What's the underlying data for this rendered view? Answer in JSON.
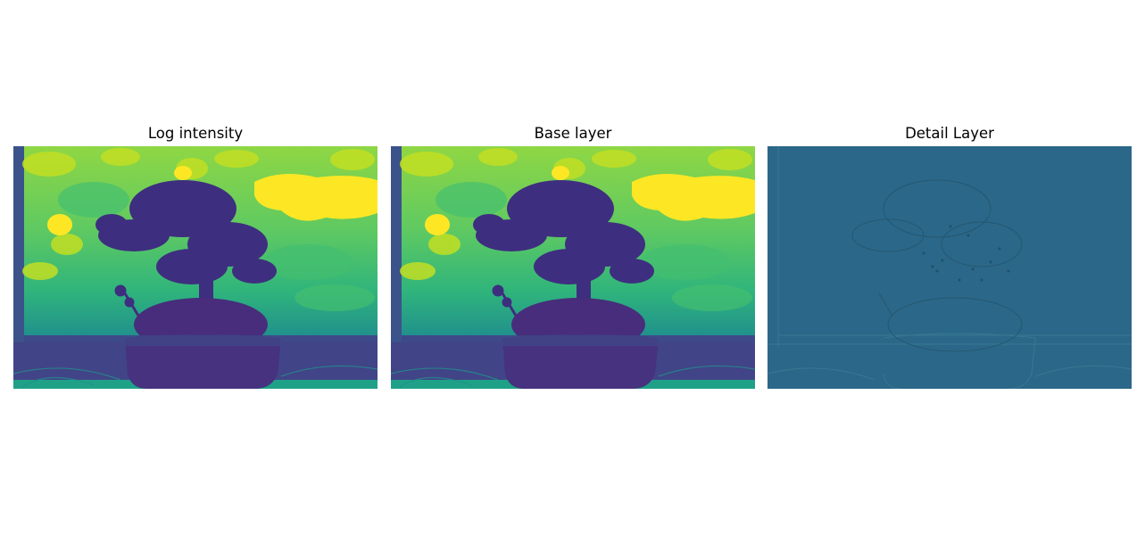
{
  "figure": {
    "panels": [
      {
        "title": "Log intensity",
        "image_description": "viridis colormap: yellow-green foliage background, dark purple bonsai tree in pot, teal window sill",
        "colors": {
          "bright": "#f1e51d",
          "mid": "#3aba76",
          "teal": "#21918c",
          "dark": "#3e2e80",
          "darkest": "#440154"
        }
      },
      {
        "title": "Base layer",
        "image_description": "smoothed version of log intensity in viridis colormap",
        "colors": {
          "bright": "#f1e51d",
          "mid": "#3aba76",
          "teal": "#21918c",
          "dark": "#3e2e80",
          "darkest": "#440154"
        }
      },
      {
        "title": "Detail Layer",
        "image_description": "nearly uniform steel-blue field with faint edge outlines of the bonsai",
        "colors": {
          "field": "#2b6788",
          "edge_light": "#3b7d96",
          "edge_dark": "#24566f"
        }
      }
    ]
  }
}
